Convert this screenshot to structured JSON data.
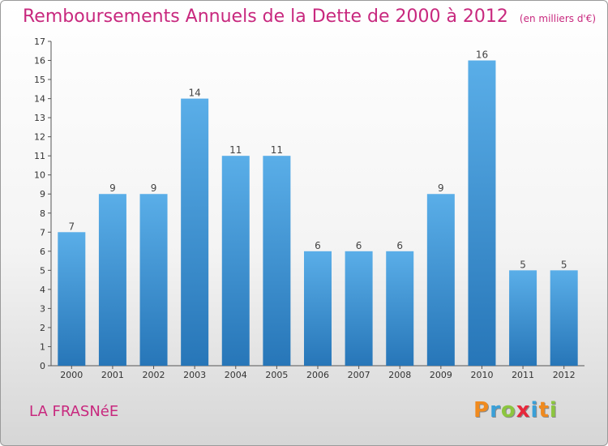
{
  "header": {
    "title": "Remboursements Annuels de la Dette de 2000 à 2012",
    "unit": "(en milliers d'€)"
  },
  "footer": {
    "town": "LA FRASNéE",
    "logo_letters": [
      "P",
      "r",
      "o",
      "x",
      "i",
      "t",
      "i"
    ],
    "logo_colors": [
      "#f08a1e",
      "#3aa0d8",
      "#8cc63f",
      "#e8283c",
      "#3aa0d8",
      "#f08a1e",
      "#8cc63f"
    ]
  },
  "colors": {
    "title": "#c8287e",
    "bar_top": "#5aaee8",
    "bar_bottom": "#2776b8"
  },
  "chart_data": {
    "type": "bar",
    "title": "Remboursements Annuels de la Dette de 2000 à 2012",
    "categories": [
      "2000",
      "2001",
      "2002",
      "2003",
      "2004",
      "2005",
      "2006",
      "2007",
      "2008",
      "2009",
      "2010",
      "2011",
      "2012"
    ],
    "values": [
      7,
      9,
      9,
      14,
      11,
      11,
      6,
      6,
      6,
      9,
      16,
      5,
      5
    ],
    "ylim": [
      0,
      17
    ],
    "yticks": [
      0,
      1,
      2,
      3,
      4,
      5,
      6,
      7,
      8,
      9,
      10,
      11,
      12,
      13,
      14,
      15,
      16,
      17
    ],
    "grid": false
  }
}
